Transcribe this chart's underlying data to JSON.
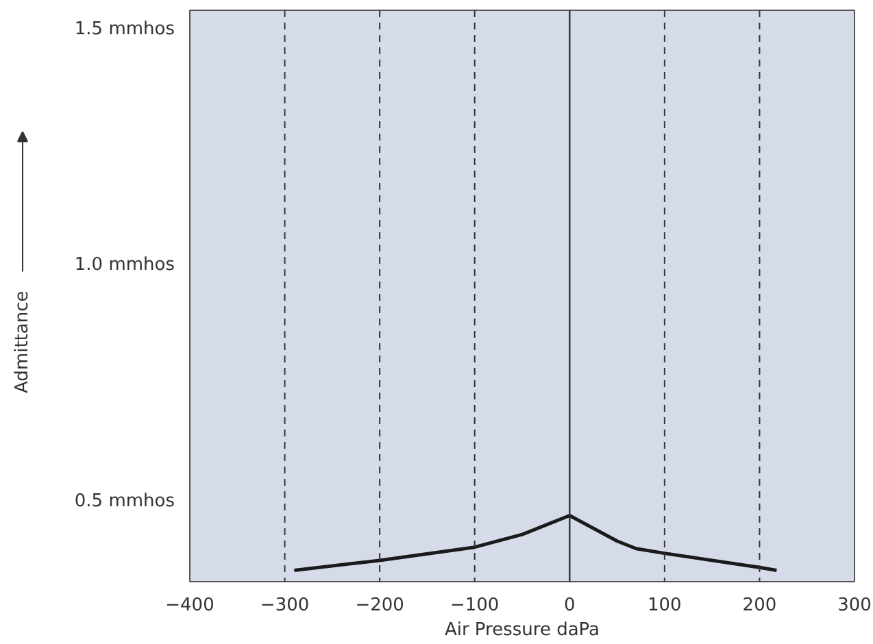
{
  "chart_data": {
    "type": "line",
    "xlabel": "Air Pressure daPa",
    "ylabel": "Admittance",
    "x": [
      -290,
      -200,
      -100,
      -50,
      0,
      50,
      70,
      100,
      200,
      218
    ],
    "series": [
      {
        "color": "#1a1a1a",
        "values": [
          0.354,
          0.375,
          0.403,
          0.43,
          0.47,
          0.416,
          0.4,
          0.39,
          0.36,
          0.354
        ]
      }
    ],
    "xlim": [
      -400,
      300
    ],
    "xticks": [
      -400,
      -300,
      -200,
      -100,
      0,
      100,
      200,
      300
    ],
    "ylim": [
      0.33,
      1.54
    ],
    "yticks": [
      {
        "value": 0.5,
        "label": "0.5 mmhos"
      },
      {
        "value": 1.0,
        "label": "1.0 mmhos"
      },
      {
        "value": 1.5,
        "label": "1.5 mmhos"
      }
    ],
    "grid": false,
    "marker": "none",
    "line_style": "solid",
    "ref_lines": [
      {
        "axis": "x",
        "value": -300,
        "line_style": "dashed"
      },
      {
        "axis": "x",
        "value": -200,
        "line_style": "dashed"
      },
      {
        "axis": "x",
        "value": -100,
        "line_style": "dashed"
      },
      {
        "axis": "x",
        "value": 0,
        "line_style": "solid"
      },
      {
        "axis": "x",
        "value": 100,
        "line_style": "dashed"
      },
      {
        "axis": "x",
        "value": 200,
        "line_style": "dashed"
      }
    ]
  }
}
